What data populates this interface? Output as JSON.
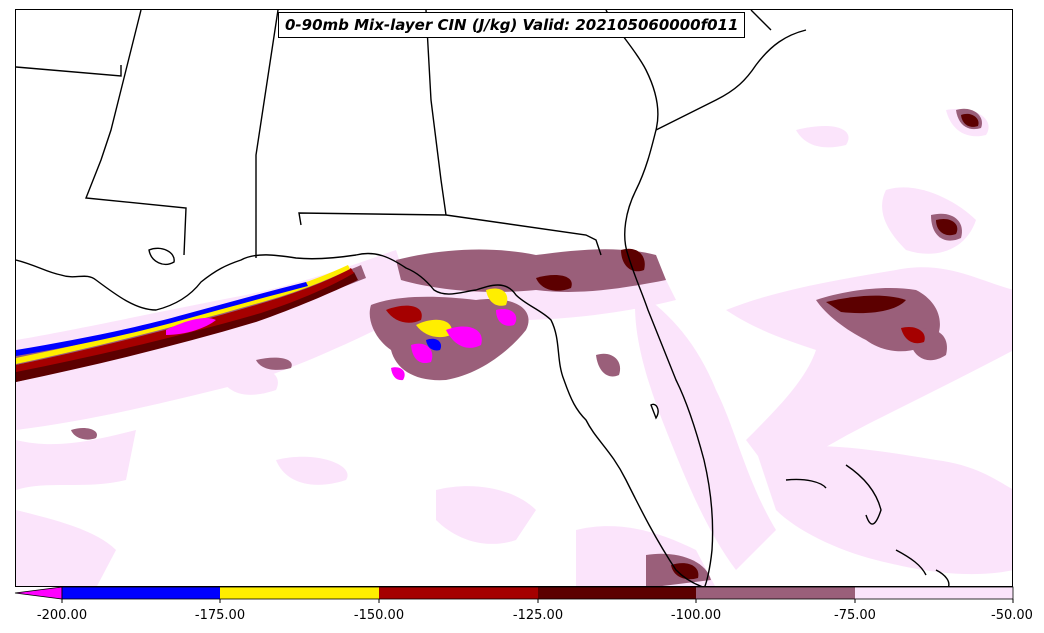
{
  "title": "0-90mb Mix-layer CIN (J/kg) Valid: 202105060000f011",
  "colorbar": {
    "ticks": [
      "-200.00",
      "-175.00",
      "-150.00",
      "-125.00",
      "-100.00",
      "-75.00",
      "-50.00"
    ],
    "extend": "min",
    "extend_color": "#ff00ff",
    "bins": [
      {
        "range": "-200 to -175",
        "color": "#0000ff"
      },
      {
        "range": "-175 to -150",
        "color": "#ffee00"
      },
      {
        "range": "-150 to -125",
        "color": "#a50000"
      },
      {
        "range": "-125 to -100",
        "color": "#5c0000"
      },
      {
        "range": "-100 to -75",
        "color": "#9a5f7a"
      },
      {
        "range": "-75 to -50",
        "color": "#fbe4fb"
      }
    ]
  },
  "map": {
    "region": "Southeastern United States and Gulf of Mexico",
    "variable": "Mix-layer CIN",
    "units": "J/kg"
  }
}
